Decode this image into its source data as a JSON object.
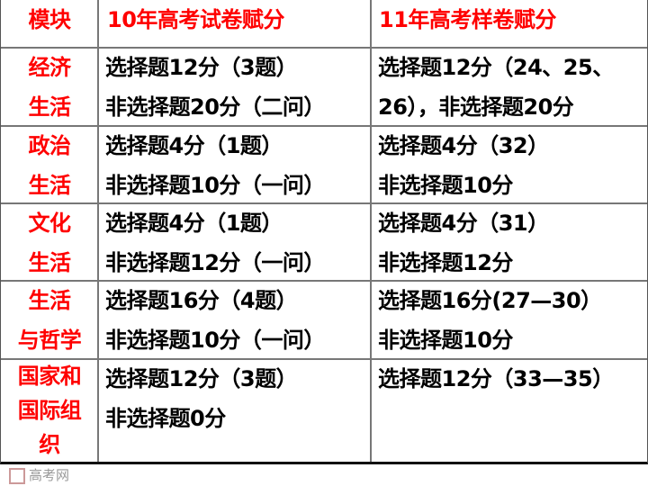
{
  "watermark": "高考网",
  "header": {
    "col1": "模块",
    "col2": "10年高考试卷赋分",
    "col3": "11年高考样卷赋分"
  },
  "rows": [
    {
      "module": [
        "经济",
        "生活"
      ],
      "y2010": [
        "选择题12分（3题）",
        "非选择题20分（二问）"
      ],
      "y2011": [
        "选择题12分（24、25、",
        "26），非选择题20分"
      ]
    },
    {
      "module": [
        "政治",
        "生活"
      ],
      "y2010": [
        "选择题4分（1题）",
        "非选择题10分（一问）"
      ],
      "y2011": [
        "选择题4分（32）",
        "非选择题10分"
      ]
    },
    {
      "module": [
        "文化",
        "生活"
      ],
      "y2010": [
        "选择题4分（1题）",
        "非选择题12分（一问）"
      ],
      "y2011": [
        "选择题4分（31）",
        "非选择题12分"
      ]
    },
    {
      "module": [
        "生活",
        "与哲学"
      ],
      "y2010": [
        "选择题16分（4题）",
        "非选择题10分（一问）"
      ],
      "y2011": [
        "选择题16分(27—30）",
        "非选择题10分"
      ]
    },
    {
      "module": [
        "国家和",
        "国际组",
        "织"
      ],
      "y2010": [
        "选择题12分（3题）",
        "非选择题0分"
      ],
      "y2011": [
        "选择题12分（33—35）"
      ]
    }
  ],
  "colors": {
    "module_text": "#ff0000",
    "body_text": "#000000",
    "grid": "#777777"
  }
}
